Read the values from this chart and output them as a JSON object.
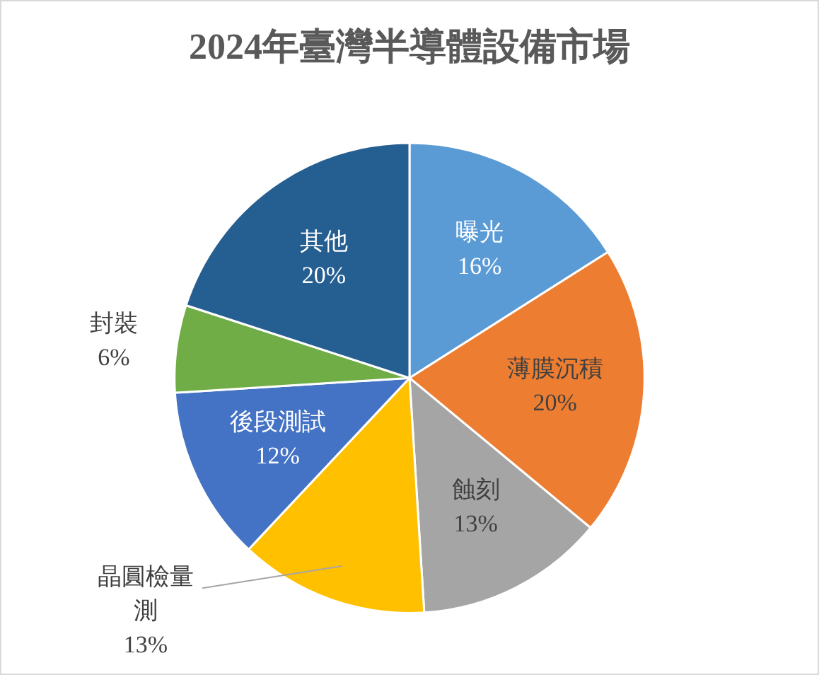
{
  "chart_data": {
    "type": "pie",
    "title": "2024年臺灣半導體設備市場",
    "categories": [
      "曝光",
      "薄膜沉積",
      "蝕刻",
      "晶圓檢量測",
      "後段測試",
      "封裝",
      "其他"
    ],
    "values": [
      16,
      20,
      13,
      13,
      12,
      6,
      20
    ],
    "value_labels": [
      "16%",
      "20%",
      "13%",
      "13%",
      "12%",
      "6%",
      "20%"
    ],
    "colors": [
      "#5b9bd5",
      "#ed7d31",
      "#a5a5a5",
      "#ffc000",
      "#4472c4",
      "#70ad47",
      "#255e91"
    ],
    "legend": false
  }
}
